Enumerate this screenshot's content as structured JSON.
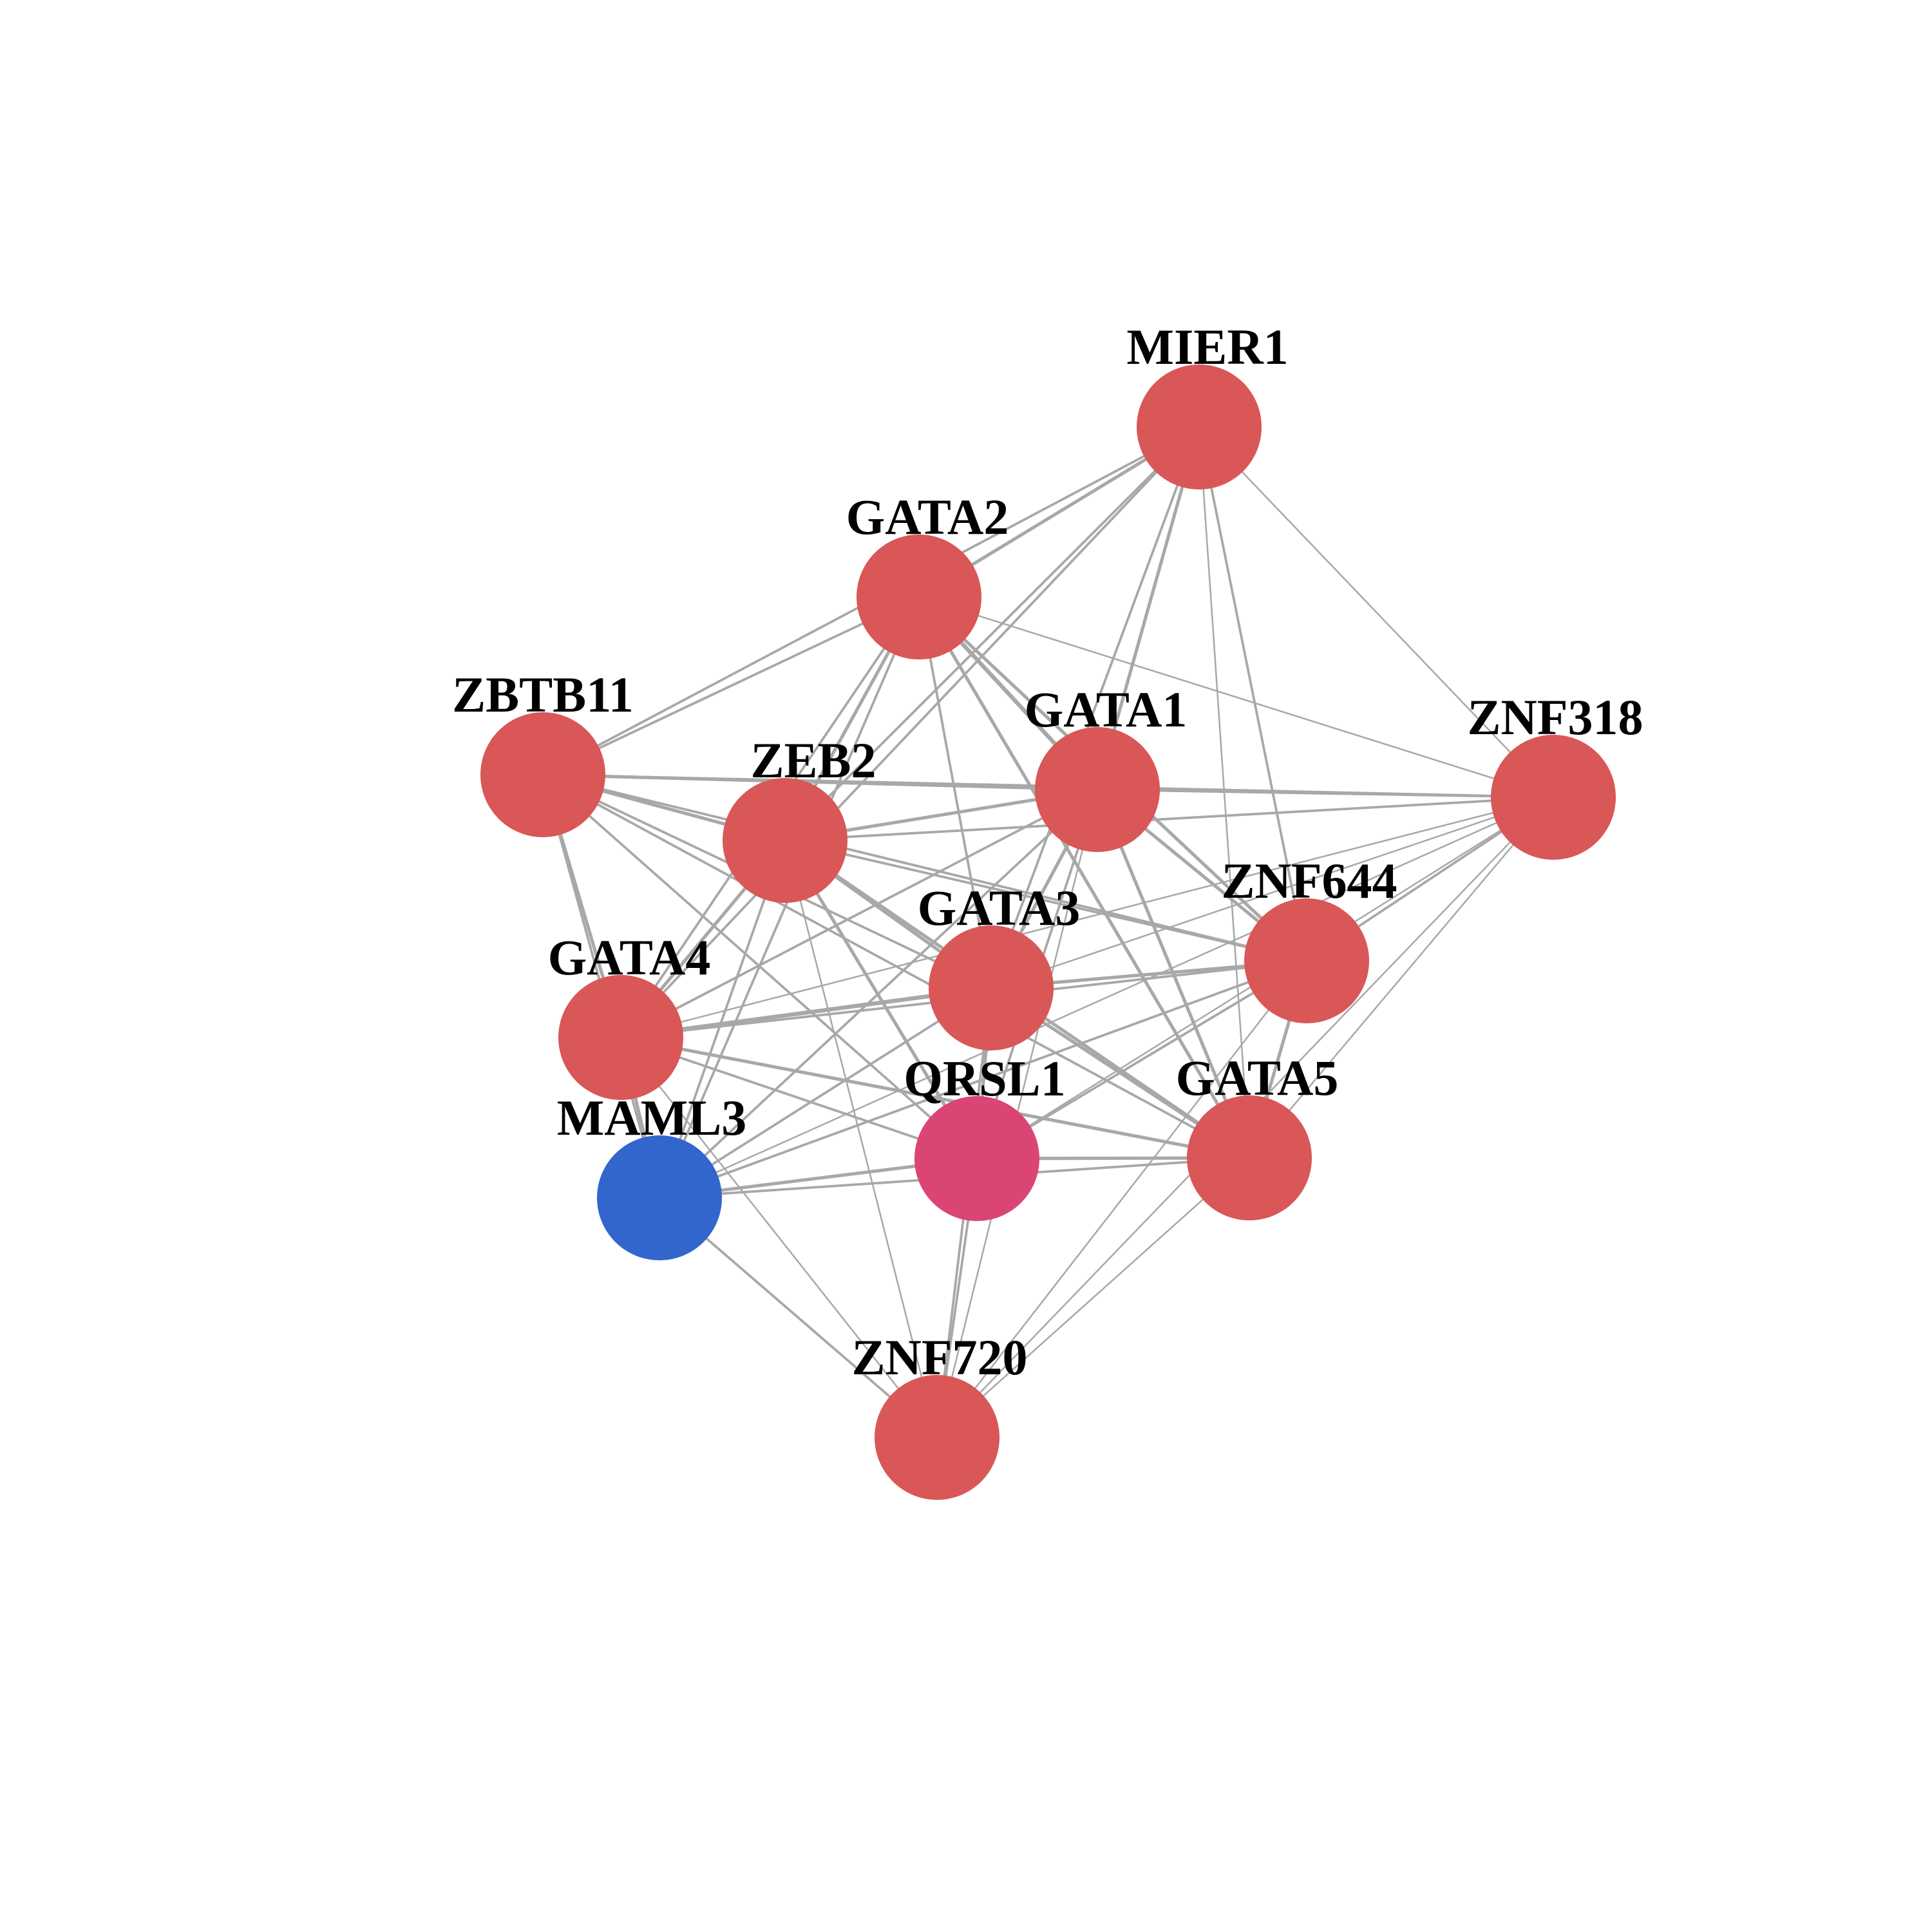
{
  "edge_color": "#a8a8a8",
  "nodes": [
    {
      "id": "MIER1",
      "label": "MIER1",
      "color": "#d95757"
    },
    {
      "id": "GATA2",
      "label": "GATA2",
      "color": "#d95757"
    },
    {
      "id": "ZBTB11",
      "label": "ZBTB11",
      "color": "#d95757"
    },
    {
      "id": "ZEB2",
      "label": "ZEB2",
      "color": "#d95757"
    },
    {
      "id": "GATA1",
      "label": "GATA1",
      "color": "#d95757"
    },
    {
      "id": "ZNF318",
      "label": "ZNF318",
      "color": "#d95757"
    },
    {
      "id": "ZNF644",
      "label": "ZNF644",
      "color": "#d95757"
    },
    {
      "id": "GATA3",
      "label": "GATA3",
      "color": "#d95757"
    },
    {
      "id": "GATA4",
      "label": "GATA4",
      "color": "#d95757"
    },
    {
      "id": "QRSL1",
      "label": "QRSL1",
      "color": "#db4574"
    },
    {
      "id": "GATA5",
      "label": "GATA5",
      "color": "#d95757"
    },
    {
      "id": "MAML3",
      "label": "MAML3",
      "color": "#3366cc"
    },
    {
      "id": "ZNF720",
      "label": "ZNF720",
      "color": "#d95757"
    }
  ],
  "edges": [
    [
      "MIER1",
      "GATA2",
      3
    ],
    [
      "MIER1",
      "ZEB2",
      2
    ],
    [
      "MIER1",
      "GATA1",
      3
    ],
    [
      "MIER1",
      "ZNF318",
      1
    ],
    [
      "MIER1",
      "ZNF644",
      2
    ],
    [
      "MIER1",
      "GATA3",
      2
    ],
    [
      "MIER1",
      "GATA5",
      1
    ],
    [
      "MIER1",
      "ZBTB11",
      2
    ],
    [
      "MIER1",
      "GATA4",
      2
    ],
    [
      "GATA2",
      "ZBTB11",
      2
    ],
    [
      "GATA2",
      "ZEB2",
      3
    ],
    [
      "GATA2",
      "GATA1",
      4
    ],
    [
      "GATA2",
      "GATA3",
      2
    ],
    [
      "GATA2",
      "ZNF644",
      3
    ],
    [
      "GATA2",
      "GATA5",
      3
    ],
    [
      "GATA2",
      "ZNF318",
      1
    ],
    [
      "GATA2",
      "GATA4",
      2
    ],
    [
      "GATA2",
      "MAML3",
      2
    ],
    [
      "ZBTB11",
      "ZEB2",
      3
    ],
    [
      "ZBTB11",
      "GATA1",
      3
    ],
    [
      "ZBTB11",
      "GATA4",
      3
    ],
    [
      "ZBTB11",
      "GATA3",
      2
    ],
    [
      "ZBTB11",
      "ZNF644",
      2
    ],
    [
      "ZBTB11",
      "QRSL1",
      2
    ],
    [
      "ZBTB11",
      "GATA5",
      2
    ],
    [
      "ZBTB11",
      "MAML3",
      2
    ],
    [
      "ZBTB11",
      "ZNF318",
      2
    ],
    [
      "ZEB2",
      "GATA1",
      3
    ],
    [
      "ZEB2",
      "GATA3",
      3
    ],
    [
      "ZEB2",
      "GATA4",
      3
    ],
    [
      "ZEB2",
      "ZNF644",
      2
    ],
    [
      "ZEB2",
      "QRSL1",
      3
    ],
    [
      "ZEB2",
      "GATA5",
      3
    ],
    [
      "ZEB2",
      "MAML3",
      2
    ],
    [
      "ZEB2",
      "ZNF720",
      1
    ],
    [
      "ZEB2",
      "ZNF318",
      2
    ],
    [
      "GATA1",
      "ZNF318",
      2
    ],
    [
      "GATA1",
      "ZNF644",
      3
    ],
    [
      "GATA1",
      "GATA3",
      3
    ],
    [
      "GATA1",
      "GATA4",
      2
    ],
    [
      "GATA1",
      "QRSL1",
      2
    ],
    [
      "GATA1",
      "GATA5",
      3
    ],
    [
      "GATA1",
      "MAML3",
      2
    ],
    [
      "GATA1",
      "ZNF720",
      1
    ],
    [
      "ZNF318",
      "ZNF644",
      2
    ],
    [
      "ZNF318",
      "GATA3",
      1
    ],
    [
      "ZNF318",
      "GATA5",
      1
    ],
    [
      "ZNF318",
      "QRSL1",
      1
    ],
    [
      "ZNF318",
      "GATA4",
      1
    ],
    [
      "ZNF318",
      "MAML3",
      1
    ],
    [
      "ZNF318",
      "ZNF720",
      1
    ],
    [
      "ZNF644",
      "GATA3",
      3
    ],
    [
      "ZNF644",
      "GATA4",
      2
    ],
    [
      "ZNF644",
      "GATA5",
      3
    ],
    [
      "ZNF644",
      "QRSL1",
      2
    ],
    [
      "ZNF644",
      "MAML3",
      2
    ],
    [
      "ZNF644",
      "ZNF720",
      1
    ],
    [
      "GATA3",
      "GATA4",
      4
    ],
    [
      "GATA3",
      "QRSL1",
      3
    ],
    [
      "GATA3",
      "GATA5",
      3
    ],
    [
      "GATA3",
      "MAML3",
      2
    ],
    [
      "GATA3",
      "ZNF720",
      2
    ],
    [
      "GATA4",
      "QRSL1",
      2
    ],
    [
      "GATA4",
      "GATA5",
      3
    ],
    [
      "GATA4",
      "MAML3",
      3
    ],
    [
      "GATA4",
      "ZNF720",
      1
    ],
    [
      "QRSL1",
      "GATA5",
      3
    ],
    [
      "QRSL1",
      "MAML3",
      3
    ],
    [
      "QRSL1",
      "ZNF720",
      2
    ],
    [
      "GATA5",
      "MAML3",
      2
    ],
    [
      "GATA5",
      "ZNF720",
      1
    ],
    [
      "MAML3",
      "ZNF720",
      2
    ]
  ]
}
